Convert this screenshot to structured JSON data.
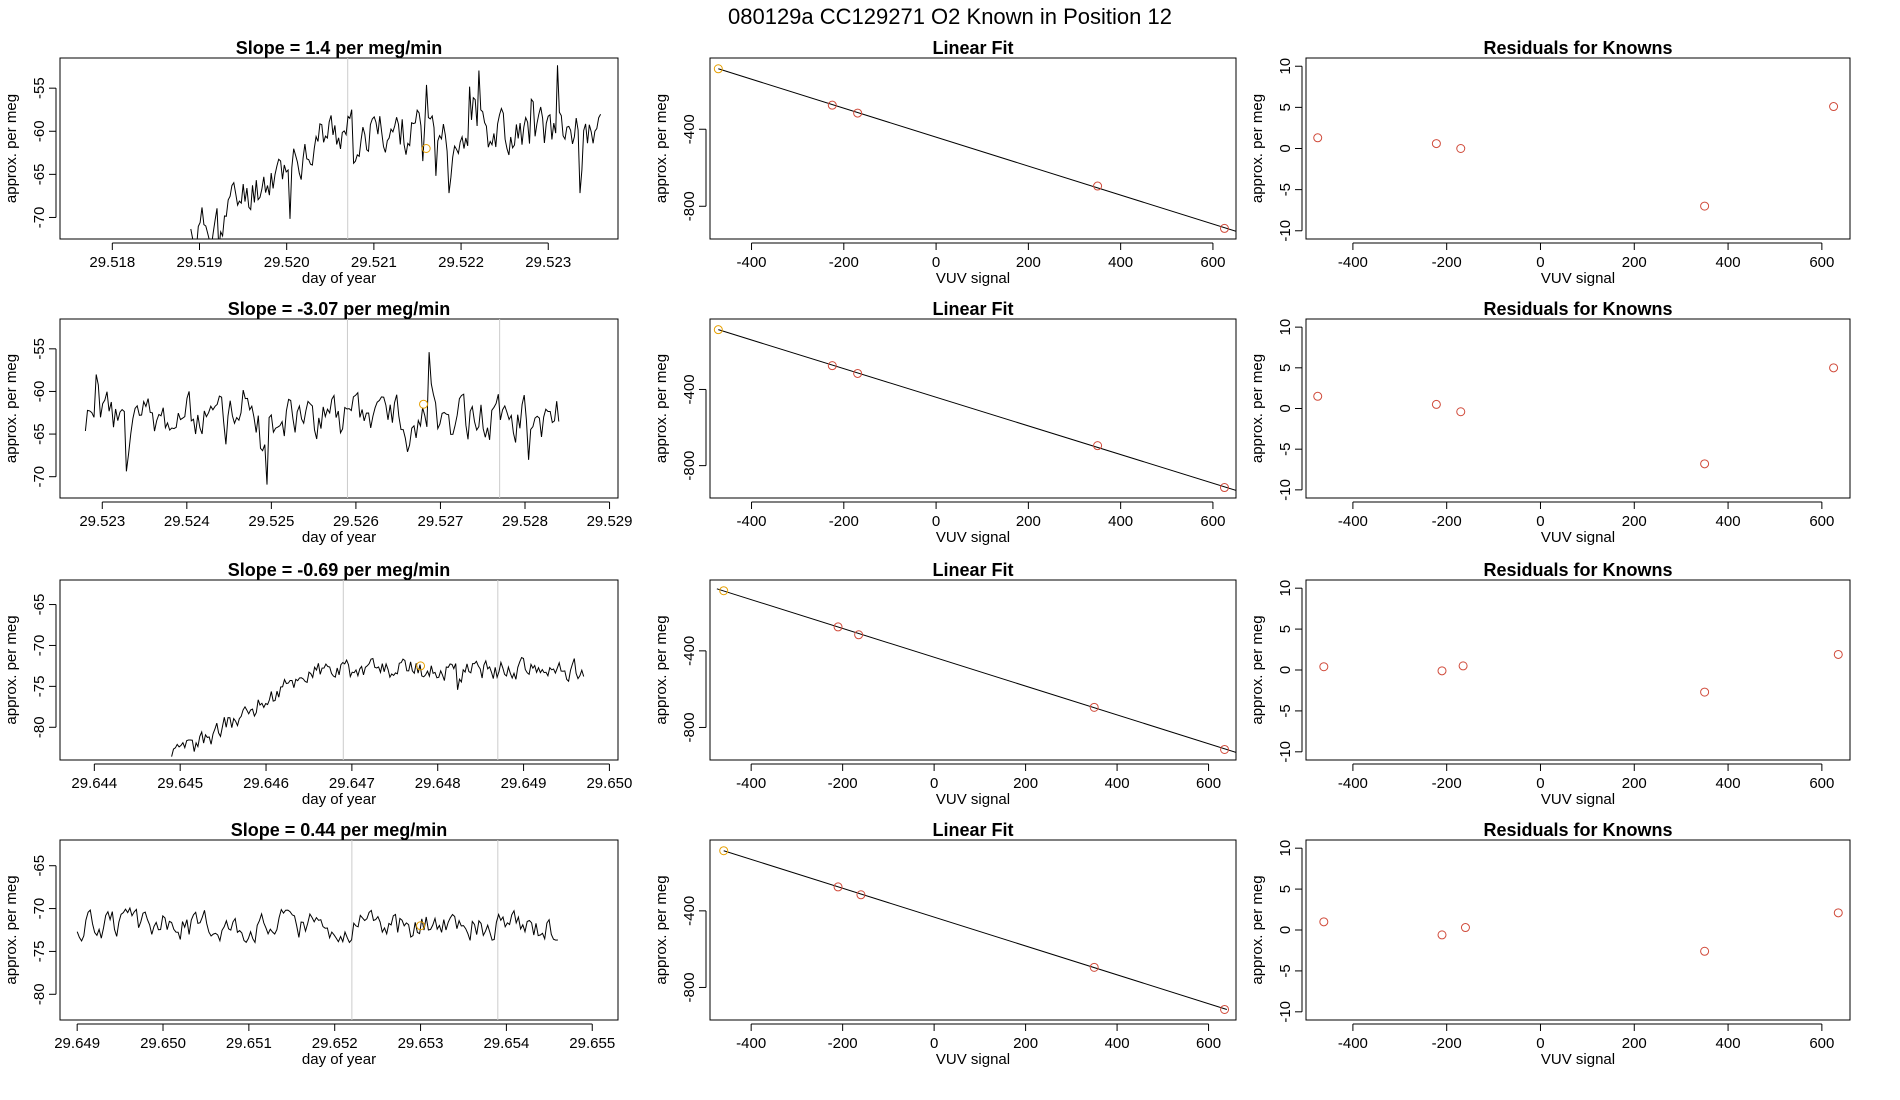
{
  "figure": {
    "title": "080129a      CC129271    O2 Known in Position  12"
  },
  "chart_data": [
    {
      "type": "line",
      "row": 0,
      "title": "Slope =  1.4  per meg/min",
      "xlabel": "day of year",
      "ylabel": "approx. per meg",
      "xlim": [
        29.5174,
        29.5238
      ],
      "ylim": [
        -72.5,
        -51.5
      ],
      "xticks": [
        29.518,
        29.519,
        29.52,
        29.521,
        29.522,
        29.523
      ],
      "xtick_labels": [
        "29.518",
        "29.519",
        "29.520",
        "29.521",
        "29.522",
        "29.523"
      ],
      "yticks": [
        -70,
        -65,
        -60,
        -55
      ],
      "ytick_labels": [
        "-70",
        "-65",
        "-60",
        "-55"
      ],
      "vlines": [
        29.5207
      ],
      "x_start": 29.5189,
      "x_end": 29.5236,
      "seed": 11,
      "base": -72,
      "rise": 12,
      "noise": 4,
      "spikes": 7,
      "marker": {
        "x": 29.5216,
        "y": -62,
        "color": "#e69f00"
      }
    },
    {
      "type": "scatter",
      "row": 0,
      "title": "Linear Fit",
      "xlabel": "VUV signal",
      "ylabel": "approx. per meg",
      "xlim": [
        -490,
        650
      ],
      "ylim": [
        -970,
        -30
      ],
      "xticks": [
        -400,
        -200,
        0,
        200,
        400,
        600
      ],
      "xtick_labels": [
        "-400",
        "-200",
        "0",
        "200",
        "400",
        "600"
      ],
      "yticks": [
        -800,
        -400
      ],
      "ytick_labels": [
        "-800",
        "-400"
      ],
      "x": [
        -472,
        -225,
        -170,
        350,
        625
      ],
      "y": [
        -86,
        -275,
        -316,
        -695,
        -915
      ],
      "first_color": "#e69f00",
      "line": [
        [
          -472,
          -86
        ],
        [
          650,
          -930
        ]
      ]
    },
    {
      "type": "scatter",
      "row": 0,
      "title": "Residuals for Knowns",
      "xlabel": "VUV signal",
      "ylabel": "approx. per meg",
      "xlim": [
        -500,
        660
      ],
      "ylim": [
        -11,
        11
      ],
      "xticks": [
        -400,
        -200,
        0,
        200,
        400,
        600
      ],
      "xtick_labels": [
        "-400",
        "-200",
        "0",
        "200",
        "400",
        "600"
      ],
      "yticks": [
        -10,
        -5,
        0,
        5,
        10
      ],
      "ytick_labels": [
        "-10",
        "-5",
        "0",
        "5",
        "10"
      ],
      "x": [
        -475,
        -222,
        -170,
        350,
        625
      ],
      "y": [
        1.3,
        0.6,
        0.0,
        -7.0,
        5.1
      ]
    },
    {
      "type": "line",
      "row": 1,
      "title": "Slope =  -3.07  per meg/min",
      "xlabel": "day of year",
      "ylabel": "approx. per meg",
      "xlim": [
        29.5225,
        29.5291
      ],
      "ylim": [
        -72.5,
        -51.5
      ],
      "xticks": [
        29.523,
        29.524,
        29.525,
        29.526,
        29.527,
        29.528,
        29.529
      ],
      "xtick_labels": [
        "29.523",
        "29.524",
        "29.525",
        "29.526",
        "29.527",
        "29.528",
        "29.529"
      ],
      "yticks": [
        -70,
        -65,
        -60,
        -55
      ],
      "ytick_labels": [
        "-70",
        "-65",
        "-60",
        "-55"
      ],
      "vlines": [
        29.5259,
        29.5277
      ],
      "x_start": 29.5228,
      "x_end": 29.5284,
      "seed": 23,
      "base": -63,
      "rise": 0,
      "noise": 4,
      "spikes": 9,
      "marker": {
        "x": 29.5268,
        "y": -61.5,
        "color": "#e69f00"
      }
    },
    {
      "type": "scatter",
      "row": 1,
      "title": "Linear Fit",
      "xlabel": "VUV signal",
      "ylabel": "approx. per meg",
      "xlim": [
        -490,
        650
      ],
      "ylim": [
        -970,
        -30
      ],
      "xticks": [
        -400,
        -200,
        0,
        200,
        400,
        600
      ],
      "xtick_labels": [
        "-400",
        "-200",
        "0",
        "200",
        "400",
        "600"
      ],
      "yticks": [
        -800,
        -400
      ],
      "ytick_labels": [
        "-800",
        "-400"
      ],
      "x": [
        -472,
        -225,
        -170,
        350,
        625
      ],
      "y": [
        -86,
        -275,
        -316,
        -695,
        -915
      ],
      "first_color": "#e69f00",
      "line": [
        [
          -472,
          -86
        ],
        [
          650,
          -930
        ]
      ]
    },
    {
      "type": "scatter",
      "row": 1,
      "title": "Residuals for Knowns",
      "xlabel": "VUV signal",
      "ylabel": "approx. per meg",
      "xlim": [
        -500,
        660
      ],
      "ylim": [
        -11,
        11
      ],
      "xticks": [
        -400,
        -200,
        0,
        200,
        400,
        600
      ],
      "xtick_labels": [
        "-400",
        "-200",
        "0",
        "200",
        "400",
        "600"
      ],
      "yticks": [
        -10,
        -5,
        0,
        5,
        10
      ],
      "ytick_labels": [
        "-10",
        "-5",
        "0",
        "5",
        "10"
      ],
      "x": [
        -475,
        -222,
        -170,
        350,
        625
      ],
      "y": [
        1.5,
        0.5,
        -0.4,
        -6.8,
        5.0
      ]
    },
    {
      "type": "line",
      "row": 2,
      "title": "Slope =  -0.69  per meg/min",
      "xlabel": "day of year",
      "ylabel": "approx. per meg",
      "xlim": [
        29.6436,
        29.6501
      ],
      "ylim": [
        -84,
        -62
      ],
      "xticks": [
        29.644,
        29.645,
        29.646,
        29.647,
        29.648,
        29.649,
        29.65
      ],
      "xtick_labels": [
        "29.644",
        "29.645",
        "29.646",
        "29.647",
        "29.648",
        "29.649",
        "29.650"
      ],
      "yticks": [
        -80,
        -75,
        -70,
        -65
      ],
      "ytick_labels": [
        "-80",
        "-75",
        "-70",
        "-65"
      ],
      "vlines": [
        29.6469,
        29.6487
      ],
      "x_start": 29.6449,
      "x_end": 29.6497,
      "seed": 37,
      "base": -84,
      "rise": 11,
      "noise": 2,
      "spikes": 3,
      "marker": {
        "x": 29.6478,
        "y": -72.5,
        "color": "#e69f00"
      }
    },
    {
      "type": "scatter",
      "row": 2,
      "title": "Linear Fit",
      "xlabel": "VUV signal",
      "ylabel": "approx. per meg",
      "xlim": [
        -490,
        660
      ],
      "ylim": [
        -970,
        -30
      ],
      "xticks": [
        -400,
        -200,
        0,
        200,
        400,
        600
      ],
      "xtick_labels": [
        "-400",
        "-200",
        "0",
        "200",
        "400",
        "600"
      ],
      "yticks": [
        -800,
        -400
      ],
      "ytick_labels": [
        "-800",
        "-400"
      ],
      "x": [
        -460,
        -210,
        -165,
        350,
        635
      ],
      "y": [
        -86,
        -275,
        -316,
        -695,
        -915
      ],
      "first_color": "#e69f00",
      "line": [
        [
          -475,
          -76
        ],
        [
          660,
          -930
        ]
      ]
    },
    {
      "type": "scatter",
      "row": 2,
      "title": "Residuals for Knowns",
      "xlabel": "VUV signal",
      "ylabel": "approx. per meg",
      "xlim": [
        -500,
        660
      ],
      "ylim": [
        -11,
        11
      ],
      "xticks": [
        -400,
        -200,
        0,
        200,
        400,
        600
      ],
      "xtick_labels": [
        "-400",
        "-200",
        "0",
        "200",
        "400",
        "600"
      ],
      "yticks": [
        -10,
        -5,
        0,
        5,
        10
      ],
      "ytick_labels": [
        "-10",
        "-5",
        "0",
        "5",
        "10"
      ],
      "x": [
        -462,
        -210,
        -165,
        350,
        635
      ],
      "y": [
        0.4,
        -0.1,
        0.5,
        -2.7,
        1.9
      ]
    },
    {
      "type": "line",
      "row": 3,
      "title": "Slope =  0.44  per meg/min",
      "xlabel": "day of year",
      "ylabel": "approx. per meg",
      "xlim": [
        29.6488,
        29.6553
      ],
      "ylim": [
        -83,
        -62
      ],
      "xticks": [
        29.649,
        29.65,
        29.651,
        29.652,
        29.653,
        29.654,
        29.655
      ],
      "xtick_labels": [
        "29.649",
        "29.650",
        "29.651",
        "29.652",
        "29.653",
        "29.654",
        "29.655"
      ],
      "yticks": [
        -80,
        -75,
        -70,
        -65
      ],
      "ytick_labels": [
        "-80",
        "-75",
        "-70",
        "-65"
      ],
      "vlines": [
        29.6522,
        29.6539
      ],
      "x_start": 29.649,
      "x_end": 29.6546,
      "seed": 51,
      "base": -72,
      "rise": 0,
      "noise": 2.5,
      "spikes": 3,
      "marker": {
        "x": 29.653,
        "y": -72,
        "color": "#e69f00"
      }
    },
    {
      "type": "scatter",
      "row": 3,
      "title": "Linear Fit",
      "xlabel": "VUV signal",
      "ylabel": "approx. per meg",
      "xlim": [
        -490,
        660
      ],
      "ylim": [
        -970,
        -30
      ],
      "xticks": [
        -400,
        -200,
        0,
        200,
        400,
        600
      ],
      "xtick_labels": [
        "-400",
        "-200",
        "0",
        "200",
        "400",
        "600"
      ],
      "yticks": [
        -800,
        -400
      ],
      "ytick_labels": [
        "-800",
        "-400"
      ],
      "x": [
        -460,
        -210,
        -160,
        350,
        635
      ],
      "y": [
        -86,
        -275,
        -316,
        -695,
        -915
      ],
      "first_color": "#e69f00",
      "line": [
        [
          -460,
          -86
        ],
        [
          640,
          -915
        ]
      ]
    },
    {
      "type": "scatter",
      "row": 3,
      "title": "Residuals for Knowns",
      "xlabel": "VUV signal",
      "ylabel": "approx. per meg",
      "xlim": [
        -500,
        660
      ],
      "ylim": [
        -11,
        11
      ],
      "xticks": [
        -400,
        -200,
        0,
        200,
        400,
        600
      ],
      "xtick_labels": [
        "-400",
        "-200",
        "0",
        "200",
        "400",
        "600"
      ],
      "yticks": [
        -10,
        -5,
        0,
        5,
        10
      ],
      "ytick_labels": [
        "-10",
        "-5",
        "0",
        "5",
        "10"
      ],
      "x": [
        -462,
        -210,
        -160,
        350,
        635
      ],
      "y": [
        1.0,
        -0.6,
        0.3,
        -2.6,
        2.1
      ]
    }
  ],
  "colors": {
    "axis": "#000000",
    "line": "#000000",
    "point": "#d04a3a",
    "highlight": "#e69f00",
    "vline": "#cccccc"
  }
}
